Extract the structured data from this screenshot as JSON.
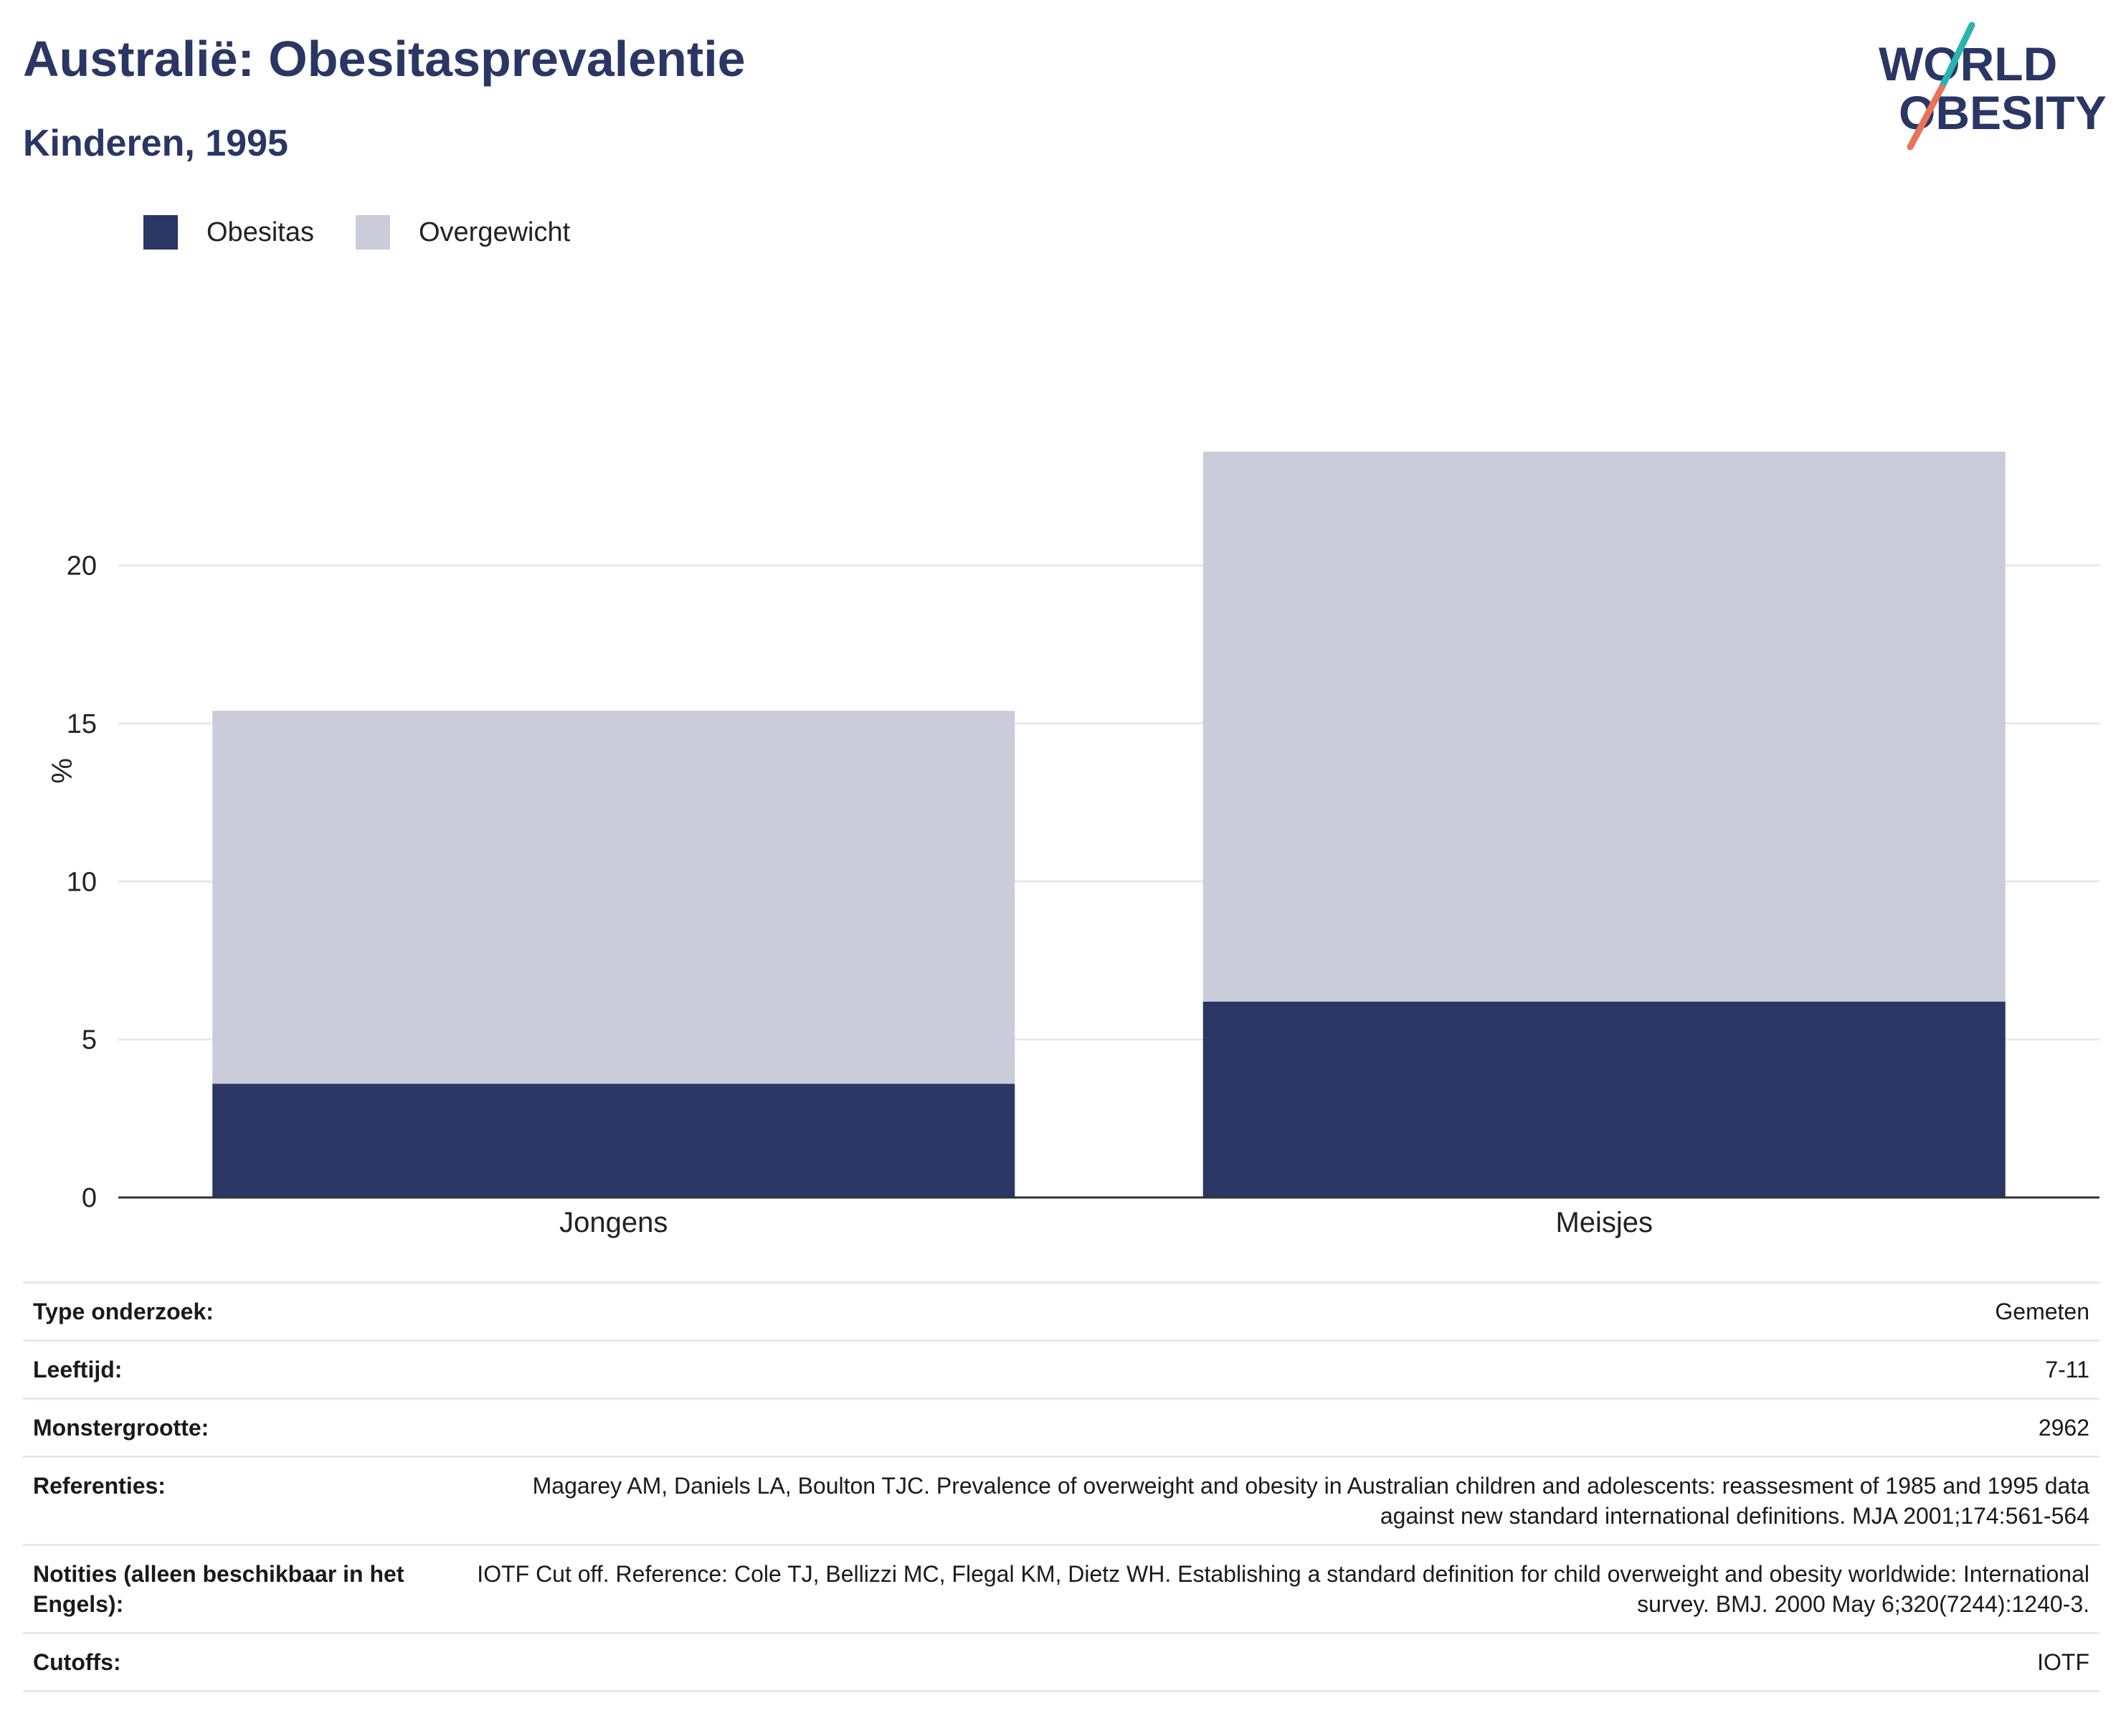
{
  "header": {
    "title": "Australië: Obesitasprevalentie",
    "subtitle": "Kinderen, 1995"
  },
  "logo": {
    "line1": "WORLD",
    "line2": "OBESITY",
    "colors": {
      "text": "#2a3663",
      "slash_teal": "#2bb3b1",
      "slash_coral": "#e8735a"
    }
  },
  "legend": {
    "items": [
      {
        "label": "Obesitas",
        "color": "#2a3663"
      },
      {
        "label": "Overgewicht",
        "color": "#cacdd9"
      }
    ]
  },
  "chart_data": {
    "type": "bar",
    "stacked": true,
    "categories": [
      "Jongens",
      "Meisjes"
    ],
    "series": [
      {
        "name": "Obesitas",
        "color": "#2a3663",
        "values": [
          3.6,
          6.2
        ]
      },
      {
        "name": "Overgewicht",
        "color": "#cacdd9",
        "values": [
          11.8,
          17.4
        ]
      }
    ],
    "ylabel": "%",
    "ylim": [
      0,
      27
    ],
    "yticks": [
      0,
      5,
      10,
      15,
      20
    ],
    "grid": true,
    "legend_position": "top-left"
  },
  "details": [
    {
      "key": "Type onderzoek:",
      "value": "Gemeten"
    },
    {
      "key": "Leeftijd:",
      "value": "7-11"
    },
    {
      "key": "Monstergrootte:",
      "value": "2962"
    },
    {
      "key": "Referenties:",
      "value": "Magarey AM, Daniels LA, Boulton TJC. Prevalence of overweight and obesity in Australian children and adolescents: reassesment of 1985 and 1995 data against new standard international definitions. MJA 2001;174:561-564"
    },
    {
      "key": "Notities (alleen beschikbaar in het Engels):",
      "value": "IOTF Cut off. Reference: Cole TJ, Bellizzi MC, Flegal KM, Dietz WH. Establishing a standard definition for child overweight and obesity worldwide: International survey. BMJ. 2000 May 6;320(7244):1240-3."
    },
    {
      "key": "Cutoffs:",
      "value": "IOTF"
    }
  ]
}
